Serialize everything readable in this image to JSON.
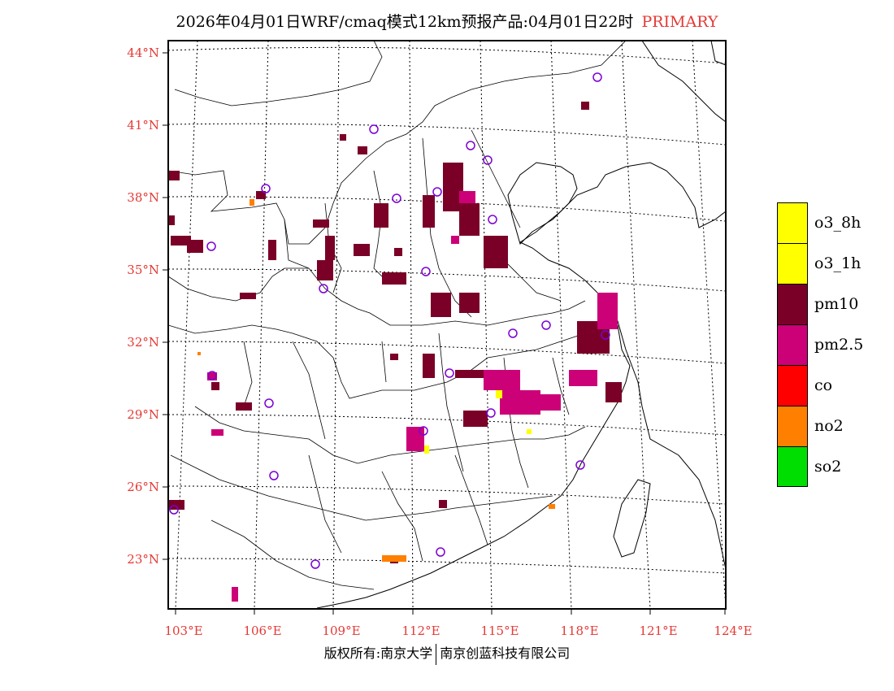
{
  "header": {
    "title": "2026年04月01日WRF/cmaq模式12km预报产品:04月01日22时",
    "tag": "PRIMARY"
  },
  "map": {
    "lat_labels": [
      "44°N",
      "41°N",
      "38°N",
      "35°N",
      "32°N",
      "29°N",
      "26°N",
      "23°N"
    ],
    "lon_labels": [
      "103°E",
      "106°E",
      "109°E",
      "112°E",
      "115°E",
      "118°E",
      "121°E",
      "124°E"
    ]
  },
  "legend": {
    "items": [
      {
        "label": "o3_8h",
        "color": "#ffff00"
      },
      {
        "label": "o3_1h",
        "color": "#ffff00"
      },
      {
        "label": "pm10",
        "color": "#7a0028"
      },
      {
        "label": "pm2.5",
        "color": "#cc0077"
      },
      {
        "label": "co",
        "color": "#ff0000"
      },
      {
        "label": "no2",
        "color": "#ff7f00"
      },
      {
        "label": "so2",
        "color": "#00dd00"
      }
    ]
  },
  "footer": {
    "left": "版权所有:南京大学",
    "right": "南京创蓝科技有限公司"
  }
}
